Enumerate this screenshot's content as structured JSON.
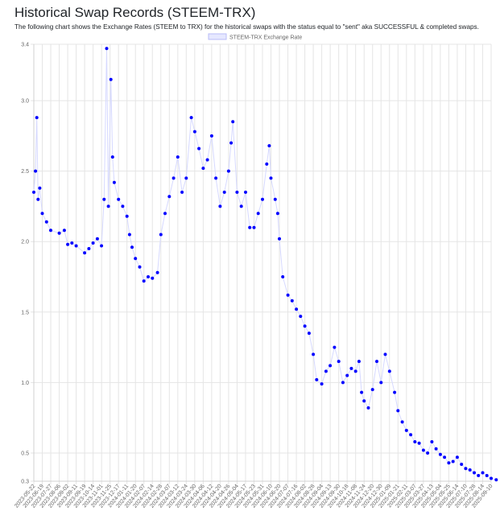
{
  "header": {
    "title": "Historical Swap Records (STEEM-TRX)",
    "description": "The following chart shows the Exchange Rates (STEEM to TRX) for the historical swaps with the status equal to \"sent\" aka SUCCESSFUL & completed swaps."
  },
  "colors": {
    "point": "#0000ff",
    "line": "#d6d9ff",
    "legend_fill": "#e6e8ff",
    "legend_stroke": "#b9bdf7",
    "grid": "#e5e5e5"
  },
  "chart_data": {
    "type": "scatter",
    "legend": [
      "STEEM-TRX Exchange Rate"
    ],
    "legend_position": "top",
    "grid": true,
    "ylim": [
      0.3,
      3.4
    ],
    "y_ticks": [
      0.3,
      0.5,
      1.0,
      1.5,
      2.0,
      2.5,
      3.0,
      3.4
    ],
    "x_tick_labels": [
      "2023-05-22",
      "2023-06-19",
      "2023-07-27",
      "2023-08-06",
      "2023-09-02",
      "2023-09-11",
      "2023-09-19",
      "2023-10-14",
      "2023-11-01",
      "2023-11-25",
      "2023-12-17",
      "2024-01-11",
      "2024-01-20",
      "2024-02-07",
      "2024-02-14",
      "2024-02-28",
      "2024-03-07",
      "2024-03-12",
      "2024-03-24",
      "2024-03-30",
      "2024-04-06",
      "2024-04-12",
      "2024-04-20",
      "2024-04-26",
      "2024-05-04",
      "2024-05-17",
      "2024-05-23",
      "2024-05-31",
      "2024-06-10",
      "2024-06-20",
      "2024-07-07",
      "2024-07-16",
      "2024-08-02",
      "2024-08-28",
      "2024-09-04",
      "2024-09-13",
      "2024-09-30",
      "2024-10-18",
      "2024-11-08",
      "2024-11-24",
      "2024-12-20",
      "2024-12-30",
      "2025-01-09",
      "2025-01-21",
      "2025-02-11",
      "2025-03-07",
      "2025-03-27",
      "2025-04-13",
      "2025-05-04",
      "2025-05-25",
      "2025-06-14",
      "2025-07-10",
      "2025-07-28",
      "2025-08-14",
      "2025-09-10"
    ],
    "series": [
      {
        "name": "STEEM-TRX Exchange Rate",
        "anchors": [
          [
            0,
            2.35
          ],
          [
            0.2,
            2.5
          ],
          [
            0.35,
            2.88
          ],
          [
            0.5,
            2.3
          ],
          [
            0.7,
            2.38
          ],
          [
            1,
            2.2
          ],
          [
            1.5,
            2.14
          ],
          [
            2,
            2.08
          ],
          [
            3,
            2.06
          ],
          [
            3.6,
            2.08
          ],
          [
            4,
            1.98
          ],
          [
            4.5,
            1.99
          ],
          [
            5,
            1.97
          ],
          [
            6,
            1.92
          ],
          [
            6.5,
            1.95
          ],
          [
            7,
            1.99
          ],
          [
            7.5,
            2.02
          ],
          [
            8,
            1.97
          ],
          [
            8.3,
            2.3
          ],
          [
            8.6,
            3.37
          ],
          [
            8.8,
            2.25
          ],
          [
            9.1,
            3.15
          ],
          [
            9.3,
            2.6
          ],
          [
            9.5,
            2.42
          ],
          [
            10,
            2.3
          ],
          [
            10.5,
            2.25
          ],
          [
            11,
            2.18
          ],
          [
            11.3,
            2.05
          ],
          [
            11.6,
            1.96
          ],
          [
            12,
            1.88
          ],
          [
            12.5,
            1.82
          ],
          [
            13,
            1.72
          ],
          [
            13.5,
            1.75
          ],
          [
            14,
            1.74
          ],
          [
            14.6,
            1.78
          ],
          [
            15,
            2.05
          ],
          [
            15.5,
            2.2
          ],
          [
            16,
            2.32
          ],
          [
            16.5,
            2.45
          ],
          [
            17,
            2.6
          ],
          [
            17.5,
            2.35
          ],
          [
            18,
            2.45
          ],
          [
            18.6,
            2.88
          ],
          [
            19,
            2.78
          ],
          [
            19.5,
            2.66
          ],
          [
            20,
            2.52
          ],
          [
            20.5,
            2.58
          ],
          [
            21,
            2.75
          ],
          [
            21.5,
            2.45
          ],
          [
            22,
            2.25
          ],
          [
            22.5,
            2.35
          ],
          [
            23,
            2.5
          ],
          [
            23.3,
            2.7
          ],
          [
            23.5,
            2.85
          ],
          [
            24,
            2.35
          ],
          [
            24.5,
            2.25
          ],
          [
            25,
            2.35
          ],
          [
            25.5,
            2.1
          ],
          [
            26,
            2.1
          ],
          [
            26.5,
            2.2
          ],
          [
            27,
            2.3
          ],
          [
            27.5,
            2.55
          ],
          [
            27.8,
            2.68
          ],
          [
            28,
            2.45
          ],
          [
            28.5,
            2.3
          ],
          [
            28.8,
            2.2
          ],
          [
            29,
            2.02
          ],
          [
            29.4,
            1.75
          ],
          [
            30,
            1.62
          ],
          [
            30.5,
            1.58
          ],
          [
            31,
            1.52
          ],
          [
            31.5,
            1.47
          ],
          [
            32,
            1.4
          ],
          [
            32.5,
            1.35
          ],
          [
            33,
            1.2
          ],
          [
            33.4,
            1.02
          ],
          [
            34,
            0.99
          ],
          [
            34.5,
            1.08
          ],
          [
            35,
            1.12
          ],
          [
            35.5,
            1.25
          ],
          [
            36,
            1.15
          ],
          [
            36.5,
            1.0
          ],
          [
            37,
            1.05
          ],
          [
            37.5,
            1.1
          ],
          [
            38,
            1.08
          ],
          [
            38.4,
            1.15
          ],
          [
            38.7,
            0.93
          ],
          [
            39,
            0.87
          ],
          [
            39.5,
            0.82
          ],
          [
            40,
            0.95
          ],
          [
            40.5,
            1.15
          ],
          [
            41,
            1.0
          ],
          [
            41.5,
            1.2
          ],
          [
            42,
            1.08
          ],
          [
            42.6,
            0.93
          ],
          [
            43,
            0.8
          ],
          [
            43.5,
            0.72
          ],
          [
            44,
            0.66
          ],
          [
            44.5,
            0.63
          ],
          [
            45,
            0.58
          ],
          [
            45.5,
            0.57
          ],
          [
            46,
            0.52
          ],
          [
            46.5,
            0.5
          ],
          [
            47,
            0.58
          ],
          [
            47.5,
            0.53
          ],
          [
            48,
            0.49
          ],
          [
            48.5,
            0.47
          ],
          [
            49,
            0.43
          ],
          [
            49.5,
            0.44
          ],
          [
            50,
            0.47
          ],
          [
            50.5,
            0.42
          ],
          [
            51,
            0.39
          ],
          [
            51.5,
            0.38
          ],
          [
            52,
            0.36
          ],
          [
            52.5,
            0.34
          ],
          [
            53,
            0.36
          ],
          [
            53.5,
            0.34
          ],
          [
            54,
            0.32
          ],
          [
            54.6,
            0.31
          ]
        ]
      }
    ]
  }
}
